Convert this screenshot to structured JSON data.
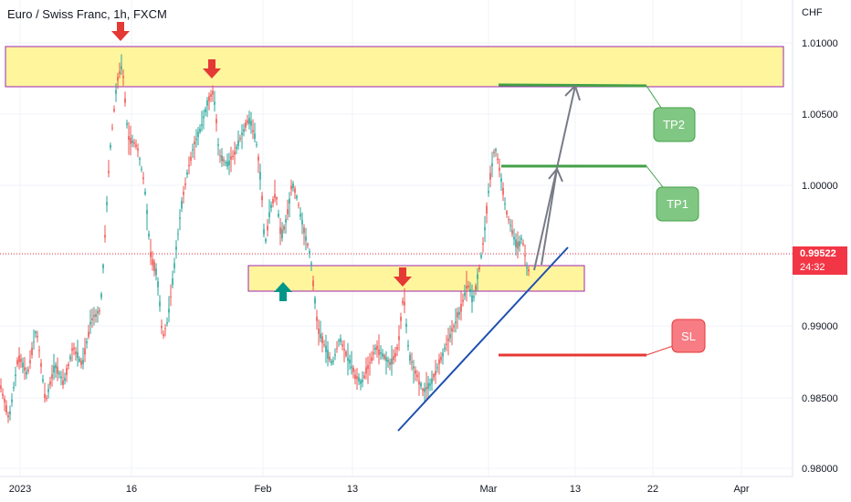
{
  "header": {
    "title": "Euro / Swiss Franc, 1h, FXCM",
    "currency": "CHF"
  },
  "price_axis": {
    "ticks": [
      "1.01000",
      "1.00500",
      "1.00000",
      "0.99500",
      "0.99000",
      "0.98500",
      "0.98000"
    ],
    "tick_values": [
      1.01,
      1.005,
      1.0,
      0.995,
      0.99,
      0.985,
      0.98
    ]
  },
  "time_axis": {
    "labels": [
      "2023",
      "16",
      "Feb",
      "13",
      "Mar",
      "13",
      "22",
      "Apr"
    ]
  },
  "current_price": {
    "value": "0.99522",
    "countdown": "24:32"
  },
  "annotations": {
    "tp1": "TP1",
    "tp2": "TP2",
    "sl": "SL"
  },
  "colors": {
    "up": "#26a69a",
    "down": "#ef5350",
    "zone_fill": "#fff59d",
    "zone_border": "#9c27b0",
    "arrow_down": "#e53935",
    "arrow_up": "#009688",
    "trendline": "#1e4fb0",
    "tp_line": "#43a047",
    "sl_line": "#e53935",
    "tp_label_bg": "#81c784",
    "sl_label_bg": "#f77c84",
    "projection": "#787b86",
    "price_tag": "#f23645"
  }
}
